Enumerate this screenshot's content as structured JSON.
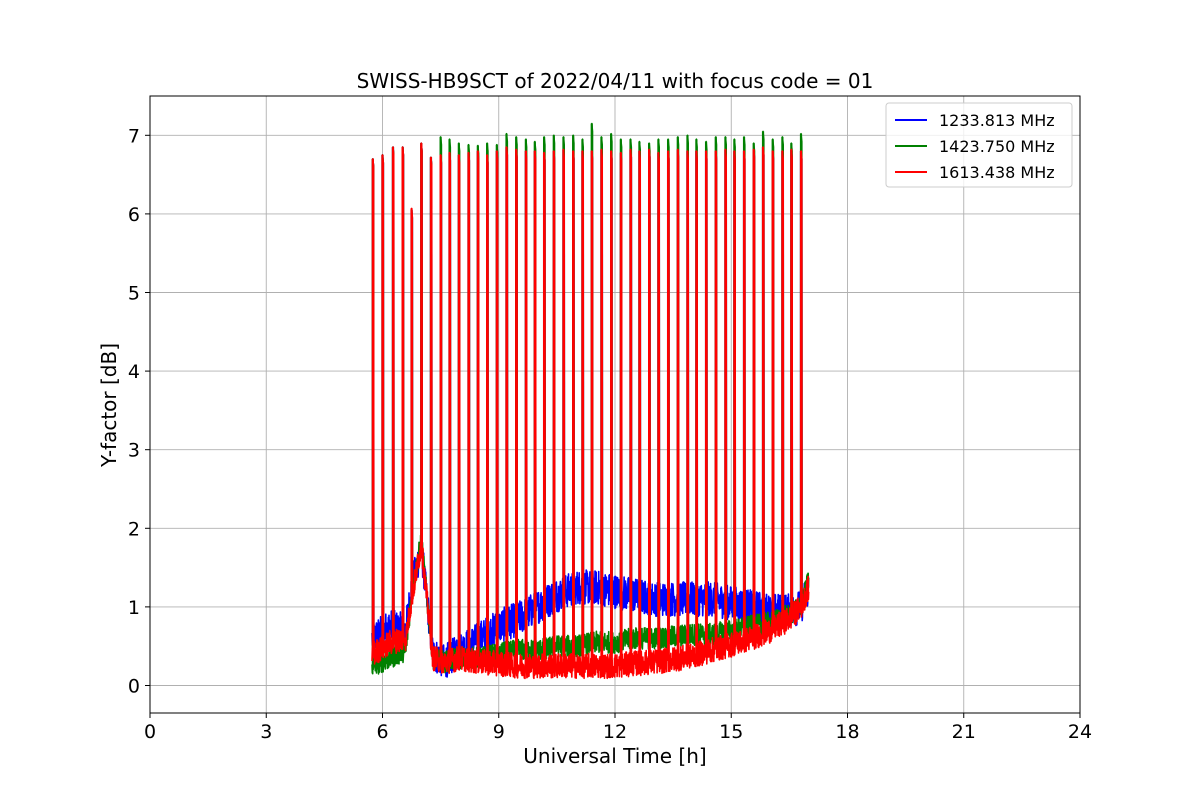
{
  "chart_data": {
    "type": "line",
    "title": "SWISS-HB9SCT of 2022/04/11 with focus code = 01",
    "xlabel": "Universal Time [h]",
    "ylabel": "Y-factor [dB]",
    "xlim": [
      0,
      24
    ],
    "ylim": [
      -0.35,
      7.5
    ],
    "xticks": [
      0,
      3,
      6,
      9,
      12,
      15,
      18,
      21,
      24
    ],
    "yticks": [
      0,
      1,
      2,
      3,
      4,
      5,
      6,
      7
    ],
    "grid": true,
    "legend_position": "top-right",
    "calibration_peaks_x": [
      5.75,
      6.0,
      6.27,
      6.52,
      6.75,
      7.0,
      7.25,
      7.5,
      7.73,
      7.97,
      8.22,
      8.46,
      8.7,
      8.95,
      9.2,
      9.45,
      9.7,
      9.93,
      10.17,
      10.42,
      10.67,
      10.92,
      11.16,
      11.4,
      11.65,
      11.9,
      12.15,
      12.4,
      12.63,
      12.88,
      13.12,
      13.37,
      13.62,
      13.87,
      14.1,
      14.35,
      14.6,
      14.85,
      15.08,
      15.33,
      15.58,
      15.82,
      16.07,
      16.32,
      16.55,
      16.8
    ],
    "series": [
      {
        "name": "1233.813 MHz",
        "color": "#0000ff",
        "baseline_x": [
          5.75,
          6.2,
          6.6,
          6.75,
          7.0,
          7.3,
          7.6,
          8.0,
          8.5,
          9.0,
          9.5,
          10.0,
          10.5,
          11.0,
          11.5,
          12.0,
          12.5,
          13.0,
          13.5,
          14.0,
          14.5,
          15.0,
          15.5,
          16.0,
          16.5,
          16.8,
          17.0
        ],
        "baseline_y": [
          0.6,
          0.75,
          0.7,
          1.25,
          1.75,
          0.4,
          0.3,
          0.45,
          0.6,
          0.75,
          0.85,
          1.0,
          1.15,
          1.25,
          1.25,
          1.2,
          1.15,
          1.1,
          1.1,
          1.1,
          1.1,
          1.05,
          1.0,
          0.95,
          0.95,
          1.0,
          1.25
        ],
        "peak_values": [
          6.7,
          6.75,
          6.85,
          6.85,
          6.05,
          6.9,
          6.72,
          6.75,
          6.78,
          6.75,
          6.78,
          6.8,
          6.75,
          6.8,
          6.85,
          6.82,
          6.8,
          6.8,
          6.78,
          6.8,
          6.82,
          6.8,
          6.8,
          6.8,
          6.82,
          6.8,
          6.78,
          6.82,
          6.8,
          6.82,
          6.78,
          6.8,
          6.82,
          6.8,
          6.8,
          6.8,
          6.8,
          6.82,
          6.8,
          6.8,
          6.82,
          6.85,
          6.8,
          6.8,
          6.82,
          6.8
        ]
      },
      {
        "name": "1423.750 MHz",
        "color": "#008000",
        "baseline_x": [
          5.75,
          6.2,
          6.6,
          6.75,
          7.0,
          7.3,
          7.6,
          8.0,
          8.5,
          9.0,
          9.5,
          10.0,
          10.5,
          11.0,
          11.5,
          12.0,
          12.5,
          13.0,
          13.5,
          14.0,
          14.5,
          15.0,
          15.5,
          16.0,
          16.5,
          16.8,
          17.0
        ],
        "baseline_y": [
          0.25,
          0.35,
          0.45,
          1.15,
          1.85,
          0.35,
          0.3,
          0.35,
          0.35,
          0.4,
          0.45,
          0.45,
          0.5,
          0.5,
          0.55,
          0.55,
          0.6,
          0.6,
          0.62,
          0.65,
          0.65,
          0.7,
          0.75,
          0.8,
          0.9,
          1.0,
          1.35
        ],
        "peak_values": [
          6.7,
          6.75,
          6.85,
          6.85,
          6.05,
          6.9,
          6.72,
          6.98,
          6.95,
          6.9,
          6.88,
          6.87,
          6.9,
          6.88,
          7.02,
          6.98,
          6.95,
          6.92,
          6.98,
          7.0,
          6.98,
          7.0,
          6.95,
          7.15,
          6.98,
          7.02,
          6.95,
          6.95,
          6.92,
          6.9,
          6.95,
          6.95,
          6.98,
          7.0,
          6.95,
          6.92,
          6.98,
          6.98,
          6.95,
          6.98,
          6.9,
          7.05,
          6.95,
          6.98,
          6.9,
          7.02
        ]
      },
      {
        "name": "1613.438 MHz",
        "color": "#ff0000",
        "baseline_x": [
          5.75,
          6.2,
          6.6,
          6.75,
          7.0,
          7.3,
          7.6,
          8.0,
          8.5,
          9.0,
          9.5,
          10.0,
          10.5,
          11.0,
          11.5,
          12.0,
          12.5,
          13.0,
          13.5,
          14.0,
          14.5,
          15.0,
          15.5,
          16.0,
          16.5,
          16.8,
          17.0
        ],
        "baseline_y": [
          0.4,
          0.55,
          0.6,
          1.1,
          1.8,
          0.35,
          0.3,
          0.35,
          0.3,
          0.28,
          0.25,
          0.25,
          0.25,
          0.25,
          0.25,
          0.25,
          0.28,
          0.3,
          0.33,
          0.38,
          0.45,
          0.52,
          0.6,
          0.7,
          0.85,
          1.0,
          1.25
        ],
        "peak_values": [
          6.7,
          6.75,
          6.85,
          6.85,
          6.07,
          6.9,
          6.72,
          6.75,
          6.78,
          6.75,
          6.78,
          6.8,
          6.75,
          6.8,
          6.85,
          6.82,
          6.8,
          6.8,
          6.78,
          6.8,
          6.82,
          6.8,
          6.8,
          6.8,
          6.82,
          6.8,
          6.78,
          6.82,
          6.8,
          6.82,
          6.78,
          6.8,
          6.82,
          6.8,
          6.8,
          6.8,
          6.8,
          6.82,
          6.8,
          6.8,
          6.82,
          6.85,
          6.8,
          6.8,
          6.82,
          6.8
        ]
      }
    ]
  }
}
